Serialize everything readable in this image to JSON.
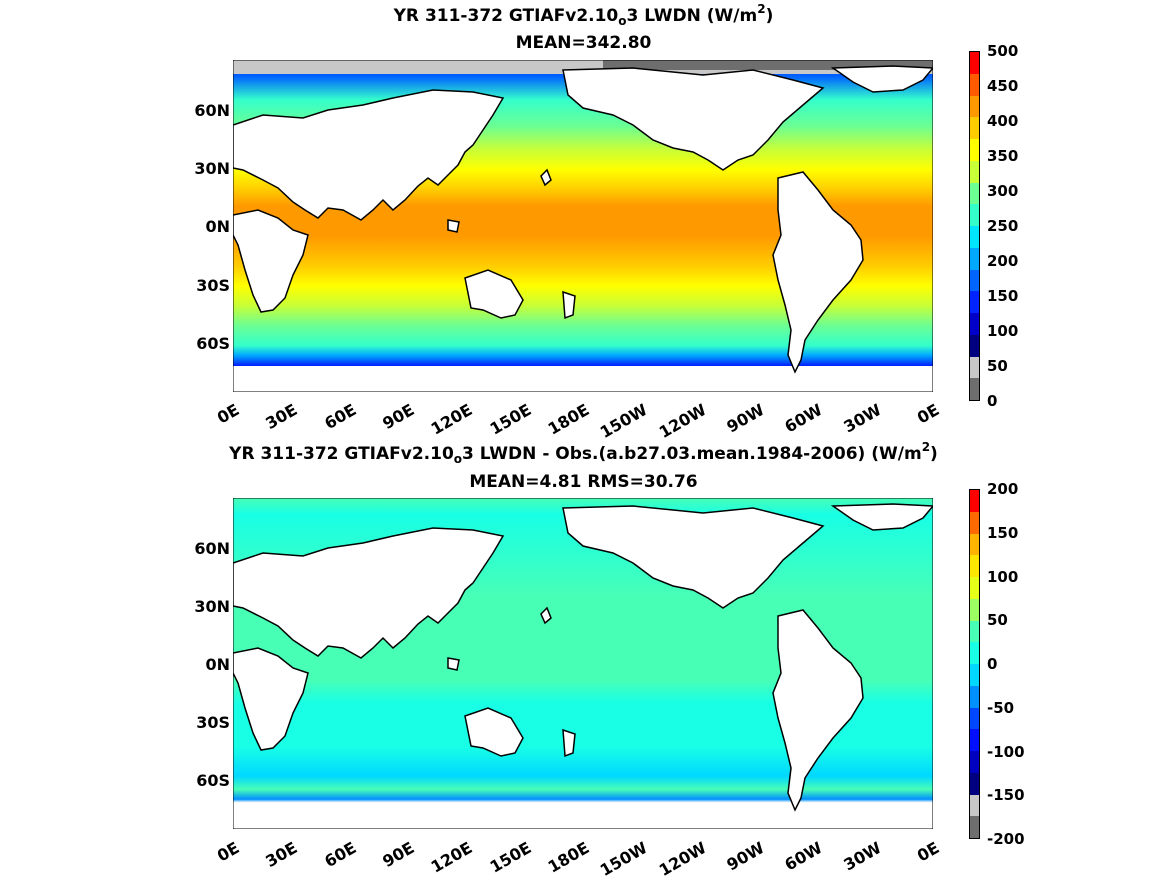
{
  "top": {
    "title_main": "YR 311-372 GTIAFv2.10",
    "title_sub": "o",
    "title_tail": "3 LWDN (W/m",
    "title_sup": "2",
    "title_close": ")",
    "stat": "MEAN=342.80",
    "colorbar_ticks": [
      "500",
      "450",
      "400",
      "350",
      "300",
      "250",
      "200",
      "150",
      "100",
      "50",
      "0"
    ],
    "colorbar_colors": [
      "#ff0000",
      "#ff5a00",
      "#ff9900",
      "#ffcc00",
      "#ffff00",
      "#c8ff37",
      "#6cff93",
      "#34ffcb",
      "#00e6ff",
      "#00a8ff",
      "#0064ff",
      "#0024ff",
      "#0000c8",
      "#000080",
      "#c8c8c8",
      "#6e6e6e"
    ]
  },
  "bottom": {
    "title_main": "YR 311-372 GTIAFv2.10",
    "title_sub": "o",
    "title_tail": "3 LWDN - Obs.(a.b27.03.mean.1984-2006) (W/m",
    "title_sup": "2",
    "title_close": ")",
    "stat": "MEAN=4.81 RMS=30.76",
    "colorbar_ticks": [
      "200",
      "150",
      "100",
      "50",
      "0",
      "-50",
      "-100",
      "-150",
      "-200"
    ],
    "colorbar_colors": [
      "#ff0000",
      "#ff6a00",
      "#ffb400",
      "#ffe600",
      "#e6ff18",
      "#9cff62",
      "#48ffb6",
      "#18ffe6",
      "#00d8ff",
      "#0090ff",
      "#0048ff",
      "#0010ff",
      "#0000c0",
      "#000080",
      "#c8c8c8",
      "#6e6e6e"
    ]
  },
  "y_labels": [
    "60N",
    "30N",
    "0N",
    "30S",
    "60S"
  ],
  "x_labels": [
    "0E",
    "30E",
    "60E",
    "90E",
    "120E",
    "150E",
    "180E",
    "150W",
    "120W",
    "90W",
    "60W",
    "30W",
    "0E"
  ],
  "colors": {
    "land": "#ffffff",
    "coast": "#000000"
  }
}
